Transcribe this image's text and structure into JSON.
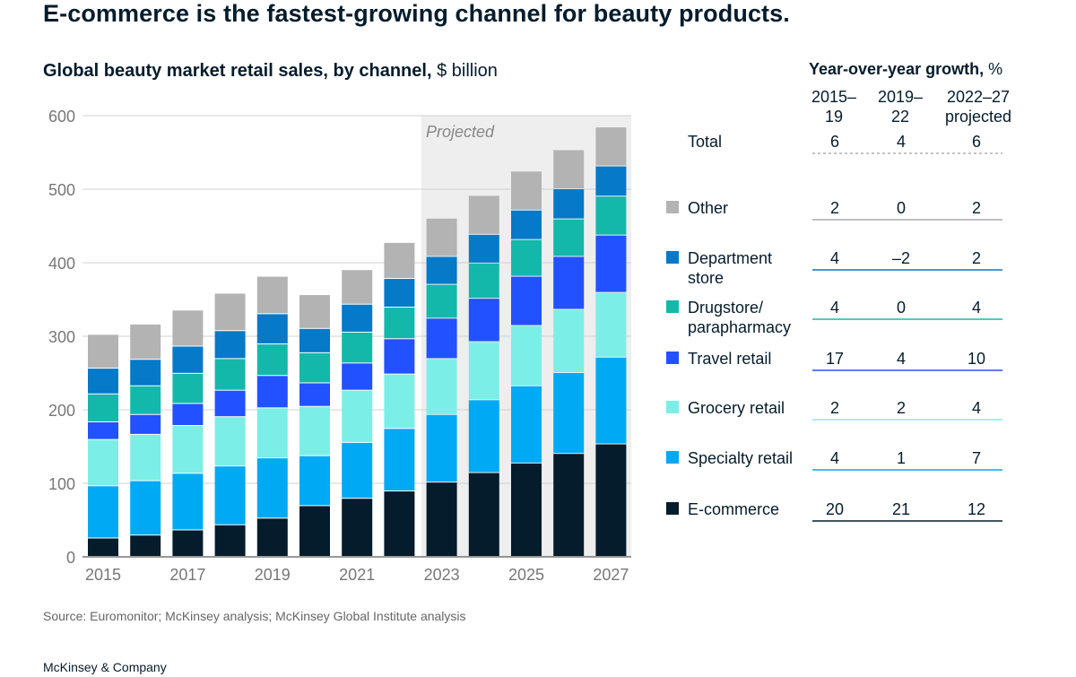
{
  "headline": "E-commerce is the fastest-growing channel for beauty products.",
  "subtitle_bold": "Global beauty market retail sales, by channel,",
  "subtitle_unit": " $ billion",
  "table": {
    "title_bold": "Year-over-year growth,",
    "title_unit": " %",
    "columns": [
      "2015–\n19",
      "2019–\n22",
      "2022–27\nprojected"
    ],
    "total_label": "Total",
    "total_values": [
      "6",
      "4",
      "6"
    ]
  },
  "chart_data": {
    "type": "bar",
    "stacked": true,
    "projected_label": "Projected",
    "projected_from": 2023,
    "x": [
      2015,
      2016,
      2017,
      2018,
      2019,
      2020,
      2021,
      2022,
      2023,
      2024,
      2025,
      2026,
      2027
    ],
    "x_tick_labels": [
      "2015",
      "2017",
      "2019",
      "2021",
      "2023",
      "2025",
      "2027"
    ],
    "y_ticks": [
      "0",
      "100",
      "200",
      "300",
      "400",
      "500",
      "600"
    ],
    "ylim": [
      0,
      600
    ],
    "grid": true,
    "series": [
      {
        "name": "E-commerce",
        "color": "#051c2c",
        "growth": [
          "20",
          "21",
          "12"
        ],
        "values": [
          25,
          29,
          36,
          43,
          52,
          69,
          79,
          89,
          101,
          114,
          127,
          140,
          153
        ]
      },
      {
        "name": "Specialty retail",
        "color": "#00a9f4",
        "growth": [
          "4",
          "1",
          "7"
        ],
        "values": [
          71,
          74,
          77,
          80,
          82,
          68,
          76,
          85,
          92,
          99,
          105,
          110,
          118
        ]
      },
      {
        "name": "Grocery retail",
        "color": "#7beee7",
        "growth": [
          "2",
          "2",
          "4"
        ],
        "values": [
          63,
          63,
          65,
          67,
          68,
          67,
          71,
          74,
          76,
          79,
          82,
          86,
          88
        ]
      },
      {
        "name": "Travel retail",
        "color": "#2251ff",
        "growth": [
          "17",
          "4",
          "10"
        ],
        "values": [
          24,
          27,
          30,
          36,
          44,
          32,
          37,
          48,
          55,
          59,
          67,
          72,
          78
        ]
      },
      {
        "name": "Drugstore/\nparapharmacy",
        "color": "#14b8ab",
        "growth": [
          "4",
          "0",
          "4"
        ],
        "values": [
          38,
          39,
          41,
          43,
          43,
          41,
          42,
          43,
          46,
          48,
          50,
          51,
          53
        ]
      },
      {
        "name": "Department\nstore",
        "color": "#0679c8",
        "growth": [
          "4",
          "–2",
          "2"
        ],
        "values": [
          35,
          36,
          37,
          38,
          41,
          33,
          38,
          39,
          38,
          39,
          40,
          41,
          41
        ]
      },
      {
        "name": "Other",
        "color": "#b3b3b3",
        "growth": [
          "2",
          "0",
          "2"
        ],
        "values": [
          46,
          48,
          49,
          51,
          51,
          46,
          47,
          49,
          52,
          53,
          53,
          53,
          53
        ]
      }
    ]
  },
  "source": "Source: Euromonitor; McKinsey analysis; McKinsey Global Institute analysis",
  "footer": "McKinsey & Company"
}
